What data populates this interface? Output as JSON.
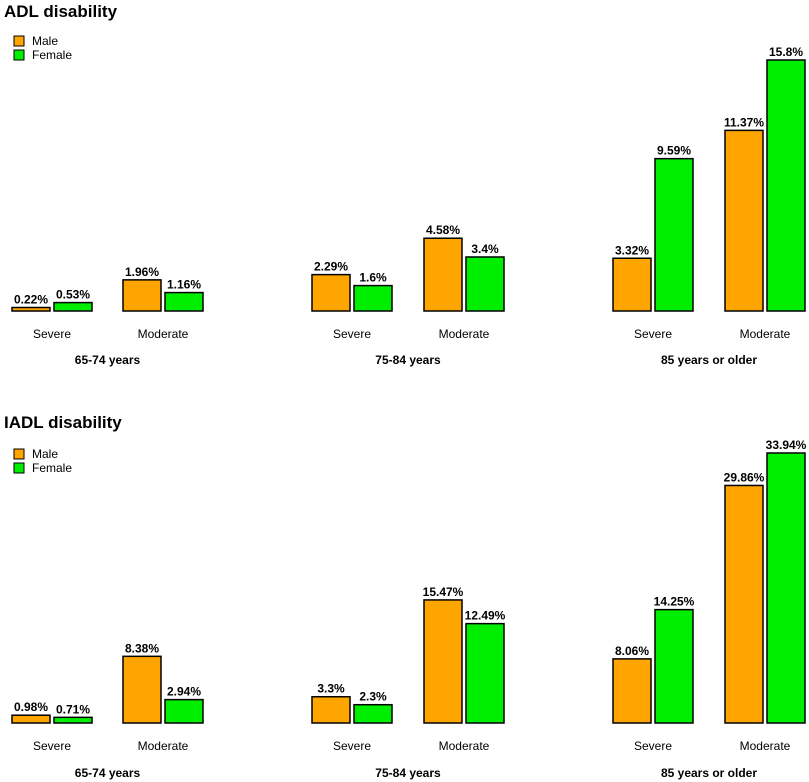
{
  "colors": {
    "male": "#FFA500",
    "female": "#00EE00",
    "stroke": "#000000"
  },
  "legend": [
    "Male",
    "Female"
  ],
  "chart_data": [
    {
      "type": "bar",
      "title": "ADL disability",
      "groups": [
        "65-74 years",
        "75-84 years",
        "85 years or older"
      ],
      "subcategories": [
        "Severe",
        "Moderate"
      ],
      "series": [
        {
          "name": "Male",
          "values": [
            0.22,
            1.96,
            2.29,
            4.58,
            3.32,
            11.37
          ],
          "labels": [
            "0.22%",
            "1.96%",
            "2.29%",
            "4.58%",
            "3.32%",
            "11.37%"
          ]
        },
        {
          "name": "Female",
          "values": [
            0.53,
            1.16,
            1.6,
            3.4,
            9.59,
            15.8
          ],
          "labels": [
            "0.53%",
            "1.16%",
            "1.6%",
            "3.4%",
            "9.59%",
            "15.8%"
          ]
        }
      ],
      "ylim": [
        0,
        15.8
      ]
    },
    {
      "type": "bar",
      "title": "IADL disability",
      "groups": [
        "65-74 years",
        "75-84 years",
        "85 years or older"
      ],
      "subcategories": [
        "Severe",
        "Moderate"
      ],
      "series": [
        {
          "name": "Male",
          "values": [
            0.98,
            8.38,
            3.3,
            15.47,
            8.06,
            29.86
          ],
          "labels": [
            "0.98%",
            "8.38%",
            "3.3%",
            "15.47%",
            "8.06%",
            "29.86%"
          ]
        },
        {
          "name": "Female",
          "values": [
            0.71,
            2.94,
            2.3,
            12.49,
            14.25,
            33.94
          ],
          "labels": [
            "0.71%",
            "2.94%",
            "2.3%",
            "12.49%",
            "14.25%",
            "33.94%"
          ]
        }
      ],
      "ylim": [
        0,
        33.94
      ]
    }
  ]
}
